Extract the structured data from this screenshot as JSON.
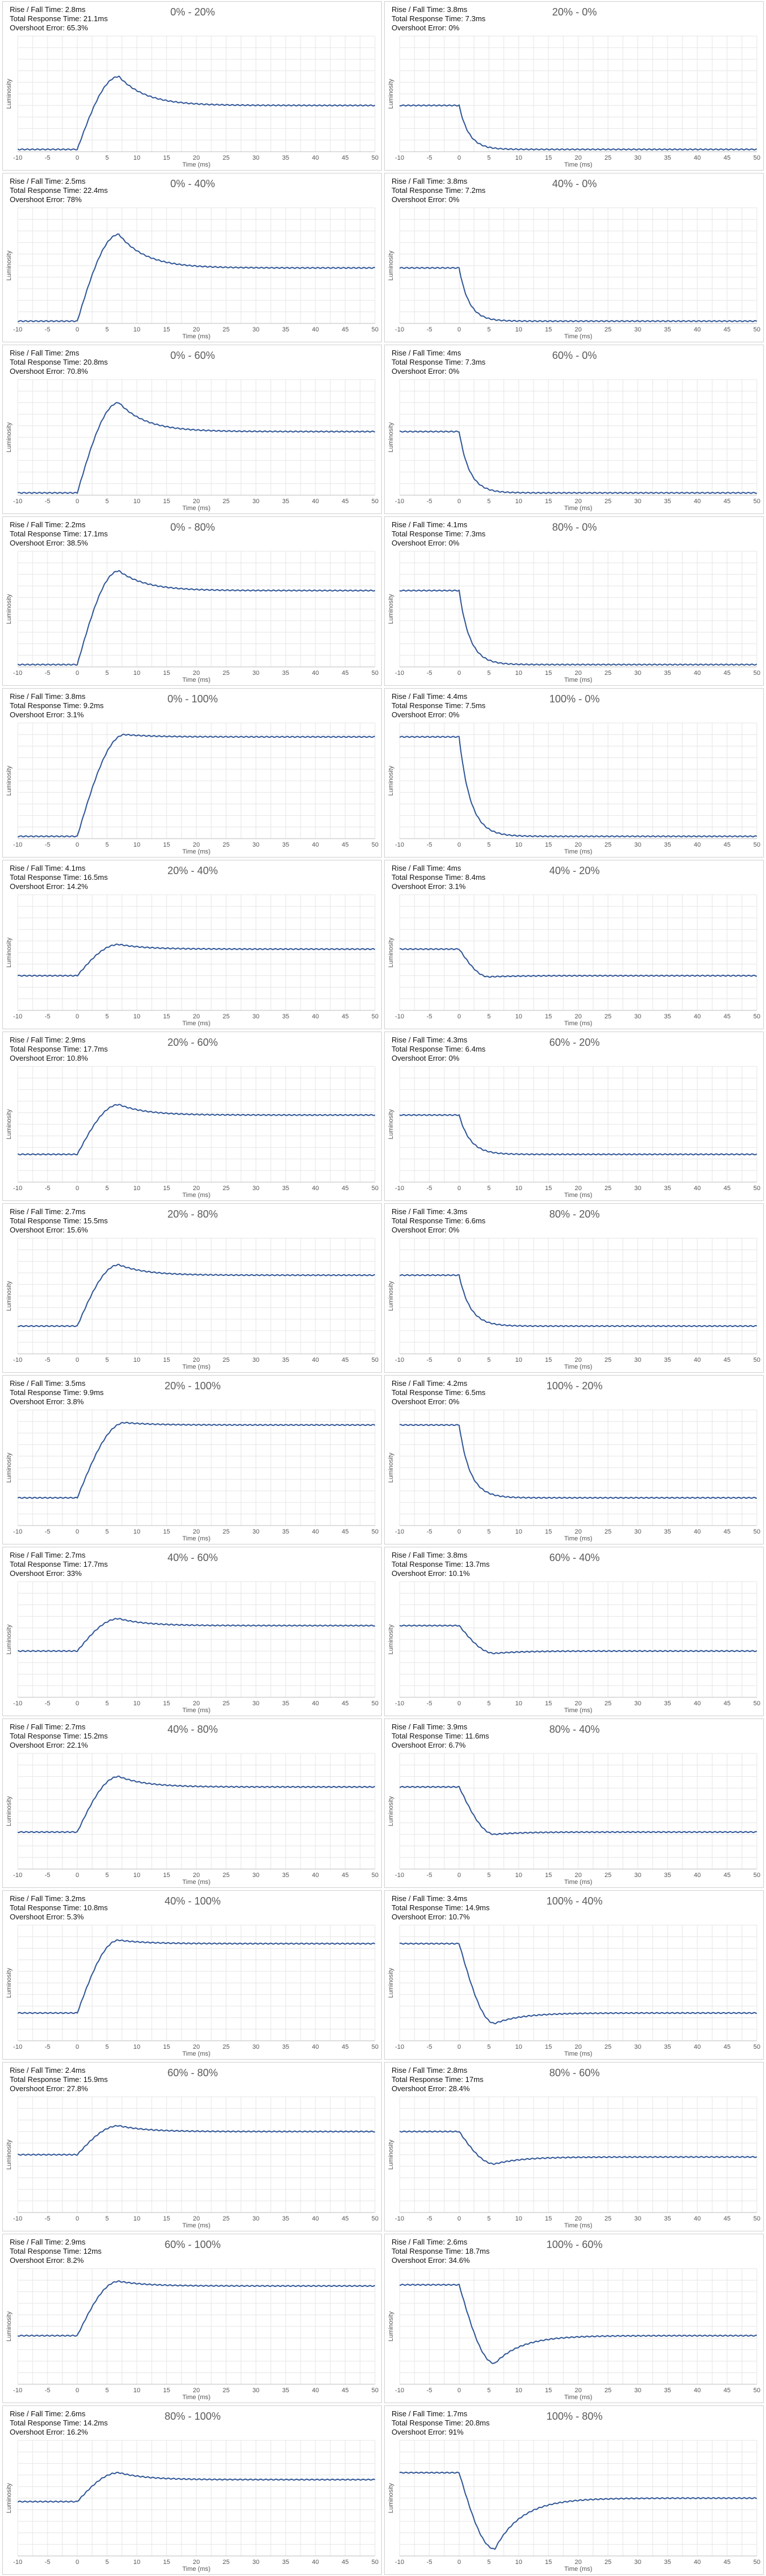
{
  "axis": {
    "xlabel": "Time (ms)",
    "ylabel": "Luminosity",
    "xticks": [
      -10,
      -5,
      0,
      5,
      10,
      15,
      20,
      25,
      30,
      35,
      40,
      45,
      50
    ],
    "xlim": [
      -10,
      50
    ],
    "line_color": "#2f5597",
    "grid_color": "#e6e6e6"
  },
  "chart_data": [
    {
      "type": "line",
      "title": "0% - 20%",
      "stats": {
        "rise_fall": "Rise / Fall Time: 2.8ms",
        "total": "Total Response Time: 21.1ms",
        "overshoot": "Overshoot Error: 65.3%"
      },
      "start_level": 0.02,
      "end_level": 0.4,
      "peak_level": 0.65,
      "transition_ms": 2.8,
      "peak_ms": 7
    },
    {
      "type": "line",
      "title": "20% - 0%",
      "stats": {
        "rise_fall": "Rise / Fall Time: 3.8ms",
        "total": "Total Response Time: 7.3ms",
        "overshoot": "Overshoot Error: 0%"
      },
      "start_level": 0.4,
      "end_level": 0.02,
      "peak_level": null,
      "transition_ms": 3.8,
      "peak_ms": null
    },
    {
      "type": "line",
      "title": "0% - 40%",
      "stats": {
        "rise_fall": "Rise / Fall Time: 2.5ms",
        "total": "Total Response Time: 22.4ms",
        "overshoot": "Overshoot Error: 78%"
      },
      "start_level": 0.02,
      "end_level": 0.48,
      "peak_level": 0.77,
      "transition_ms": 2.5,
      "peak_ms": 7
    },
    {
      "type": "line",
      "title": "40% - 0%",
      "stats": {
        "rise_fall": "Rise / Fall Time: 3.8ms",
        "total": "Total Response Time: 7.2ms",
        "overshoot": "Overshoot Error: 0%"
      },
      "start_level": 0.48,
      "end_level": 0.02,
      "peak_level": null,
      "transition_ms": 3.8,
      "peak_ms": null
    },
    {
      "type": "line",
      "title": "0% - 60%",
      "stats": {
        "rise_fall": "Rise / Fall Time: 2ms",
        "total": "Total Response Time: 20.8ms",
        "overshoot": "Overshoot Error: 70.8%"
      },
      "start_level": 0.02,
      "end_level": 0.55,
      "peak_level": 0.8,
      "transition_ms": 2.0,
      "peak_ms": 7
    },
    {
      "type": "line",
      "title": "60% - 0%",
      "stats": {
        "rise_fall": "Rise / Fall Time: 4ms",
        "total": "Total Response Time: 7.3ms",
        "overshoot": "Overshoot Error: 0%"
      },
      "start_level": 0.55,
      "end_level": 0.02,
      "peak_level": null,
      "transition_ms": 4.0,
      "peak_ms": null
    },
    {
      "type": "line",
      "title": "0% - 80%",
      "stats": {
        "rise_fall": "Rise / Fall Time: 2.2ms",
        "total": "Total Response Time: 17.1ms",
        "overshoot": "Overshoot Error: 38.5%"
      },
      "start_level": 0.02,
      "end_level": 0.66,
      "peak_level": 0.83,
      "transition_ms": 2.2,
      "peak_ms": 7
    },
    {
      "type": "line",
      "title": "80% - 0%",
      "stats": {
        "rise_fall": "Rise / Fall Time: 4.1ms",
        "total": "Total Response Time: 7.3ms",
        "overshoot": "Overshoot Error: 0%"
      },
      "start_level": 0.66,
      "end_level": 0.02,
      "peak_level": null,
      "transition_ms": 4.1,
      "peak_ms": null
    },
    {
      "type": "line",
      "title": "0% - 100%",
      "stats": {
        "rise_fall": "Rise / Fall Time: 3.8ms",
        "total": "Total Response Time: 9.2ms",
        "overshoot": "Overshoot Error: 3.1%"
      },
      "start_level": 0.02,
      "end_level": 0.88,
      "peak_level": 0.9,
      "transition_ms": 3.8,
      "peak_ms": 8
    },
    {
      "type": "line",
      "title": "100% - 0%",
      "stats": {
        "rise_fall": "Rise / Fall Time: 4.4ms",
        "total": "Total Response Time: 7.5ms",
        "overshoot": "Overshoot Error: 0%"
      },
      "start_level": 0.88,
      "end_level": 0.02,
      "peak_level": null,
      "transition_ms": 4.4,
      "peak_ms": null
    },
    {
      "type": "line",
      "title": "20% - 40%",
      "stats": {
        "rise_fall": "Rise / Fall Time: 4.1ms",
        "total": "Total Response Time: 16.5ms",
        "overshoot": "Overshoot Error: 14.2%"
      },
      "start_level": 0.3,
      "end_level": 0.53,
      "peak_level": 0.57,
      "transition_ms": 4.1,
      "peak_ms": 7
    },
    {
      "type": "line",
      "title": "40% - 20%",
      "stats": {
        "rise_fall": "Rise / Fall Time: 4ms",
        "total": "Total Response Time: 8.4ms",
        "overshoot": "Overshoot Error: 3.1%"
      },
      "start_level": 0.53,
      "end_level": 0.3,
      "peak_level": 0.29,
      "transition_ms": 4.0,
      "peak_ms": 5
    },
    {
      "type": "line",
      "title": "20% - 60%",
      "stats": {
        "rise_fall": "Rise / Fall Time: 2.9ms",
        "total": "Total Response Time: 17.7ms",
        "overshoot": "Overshoot Error: 10.8%"
      },
      "start_level": 0.24,
      "end_level": 0.58,
      "peak_level": 0.67,
      "transition_ms": 2.9,
      "peak_ms": 7
    },
    {
      "type": "line",
      "title": "60% - 20%",
      "stats": {
        "rise_fall": "Rise / Fall Time: 4.3ms",
        "total": "Total Response Time: 6.4ms",
        "overshoot": "Overshoot Error: 0%"
      },
      "start_level": 0.58,
      "end_level": 0.24,
      "peak_level": null,
      "transition_ms": 4.3,
      "peak_ms": null
    },
    {
      "type": "line",
      "title": "20% - 80%",
      "stats": {
        "rise_fall": "Rise / Fall Time: 2.7ms",
        "total": "Total Response Time: 15.5ms",
        "overshoot": "Overshoot Error: 15.6%"
      },
      "start_level": 0.24,
      "end_level": 0.68,
      "peak_level": 0.77,
      "transition_ms": 2.7,
      "peak_ms": 7
    },
    {
      "type": "line",
      "title": "80% - 20%",
      "stats": {
        "rise_fall": "Rise / Fall Time: 4.3ms",
        "total": "Total Response Time: 6.6ms",
        "overshoot": "Overshoot Error: 0%"
      },
      "start_level": 0.68,
      "end_level": 0.24,
      "peak_level": null,
      "transition_ms": 4.3,
      "peak_ms": null
    },
    {
      "type": "line",
      "title": "20% - 100%",
      "stats": {
        "rise_fall": "Rise / Fall Time: 3.5ms",
        "total": "Total Response Time: 9.9ms",
        "overshoot": "Overshoot Error: 3.8%"
      },
      "start_level": 0.24,
      "end_level": 0.87,
      "peak_level": 0.89,
      "transition_ms": 3.5,
      "peak_ms": 8
    },
    {
      "type": "line",
      "title": "100% - 20%",
      "stats": {
        "rise_fall": "Rise / Fall Time: 4.2ms",
        "total": "Total Response Time: 6.5ms",
        "overshoot": "Overshoot Error: 0%"
      },
      "start_level": 0.87,
      "end_level": 0.24,
      "peak_level": null,
      "transition_ms": 4.2,
      "peak_ms": null
    },
    {
      "type": "line",
      "title": "40% - 60%",
      "stats": {
        "rise_fall": "Rise / Fall Time: 2.7ms",
        "total": "Total Response Time: 17.7ms",
        "overshoot": "Overshoot Error: 33%"
      },
      "start_level": 0.4,
      "end_level": 0.62,
      "peak_level": 0.68,
      "transition_ms": 2.7,
      "peak_ms": 7
    },
    {
      "type": "line",
      "title": "60% - 40%",
      "stats": {
        "rise_fall": "Rise / Fall Time: 3.8ms",
        "total": "Total Response Time: 13.7ms",
        "overshoot": "Overshoot Error: 10.1%"
      },
      "start_level": 0.62,
      "end_level": 0.4,
      "peak_level": 0.38,
      "transition_ms": 3.8,
      "peak_ms": 6
    },
    {
      "type": "line",
      "title": "40% - 80%",
      "stats": {
        "rise_fall": "Rise / Fall Time: 2.7ms",
        "total": "Total Response Time: 15.2ms",
        "overshoot": "Overshoot Error: 22.1%"
      },
      "start_level": 0.32,
      "end_level": 0.71,
      "peak_level": 0.8,
      "transition_ms": 2.7,
      "peak_ms": 7
    },
    {
      "type": "line",
      "title": "80% - 40%",
      "stats": {
        "rise_fall": "Rise / Fall Time: 3.9ms",
        "total": "Total Response Time: 11.6ms",
        "overshoot": "Overshoot Error: 6.7%"
      },
      "start_level": 0.71,
      "end_level": 0.32,
      "peak_level": 0.3,
      "transition_ms": 3.9,
      "peak_ms": 6
    },
    {
      "type": "line",
      "title": "40% - 100%",
      "stats": {
        "rise_fall": "Rise / Fall Time: 3.2ms",
        "total": "Total Response Time: 10.8ms",
        "overshoot": "Overshoot Error: 5.3%"
      },
      "start_level": 0.24,
      "end_level": 0.84,
      "peak_level": 0.87,
      "transition_ms": 3.2,
      "peak_ms": 7
    },
    {
      "type": "line",
      "title": "100% - 40%",
      "stats": {
        "rise_fall": "Rise / Fall Time: 3.4ms",
        "total": "Total Response Time: 14.9ms",
        "overshoot": "Overshoot Error: 10.7%"
      },
      "start_level": 0.84,
      "end_level": 0.24,
      "peak_level": 0.15,
      "transition_ms": 3.4,
      "peak_ms": 6
    },
    {
      "type": "line",
      "title": "60% - 80%",
      "stats": {
        "rise_fall": "Rise / Fall Time: 2.4ms",
        "total": "Total Response Time: 15.9ms",
        "overshoot": "Overshoot Error: 27.8%"
      },
      "start_level": 0.5,
      "end_level": 0.7,
      "peak_level": 0.75,
      "transition_ms": 2.4,
      "peak_ms": 7
    },
    {
      "type": "line",
      "title": "80% - 60%",
      "stats": {
        "rise_fall": "Rise / Fall Time: 2.8ms",
        "total": "Total Response Time: 17ms",
        "overshoot": "Overshoot Error: 28.4%"
      },
      "start_level": 0.7,
      "end_level": 0.48,
      "peak_level": 0.42,
      "transition_ms": 2.8,
      "peak_ms": 6
    },
    {
      "type": "line",
      "title": "60% - 100%",
      "stats": {
        "rise_fall": "Rise / Fall Time: 2.9ms",
        "total": "Total Response Time: 12ms",
        "overshoot": "Overshoot Error: 8.2%"
      },
      "start_level": 0.42,
      "end_level": 0.85,
      "peak_level": 0.89,
      "transition_ms": 2.9,
      "peak_ms": 7
    },
    {
      "type": "line",
      "title": "100% - 60%",
      "stats": {
        "rise_fall": "Rise / Fall Time: 2.6ms",
        "total": "Total Response Time: 18.7ms",
        "overshoot": "Overshoot Error: 34.6%"
      },
      "start_level": 0.86,
      "end_level": 0.42,
      "peak_level": 0.18,
      "transition_ms": 2.6,
      "peak_ms": 6
    },
    {
      "type": "line",
      "title": "80% - 100%",
      "stats": {
        "rise_fall": "Rise / Fall Time: 2.6ms",
        "total": "Total Response Time: 14.2ms",
        "overshoot": "Overshoot Error: 16.2%"
      },
      "start_level": 0.47,
      "end_level": 0.66,
      "peak_level": 0.72,
      "transition_ms": 2.6,
      "peak_ms": 7
    },
    {
      "type": "line",
      "title": "100% - 80%",
      "stats": {
        "rise_fall": "Rise / Fall Time: 1.7ms",
        "total": "Total Response Time: 20.8ms",
        "overshoot": "Overshoot Error: 91%"
      },
      "start_level": 0.72,
      "end_level": 0.5,
      "peak_level": 0.06,
      "transition_ms": 1.7,
      "peak_ms": 6
    }
  ]
}
